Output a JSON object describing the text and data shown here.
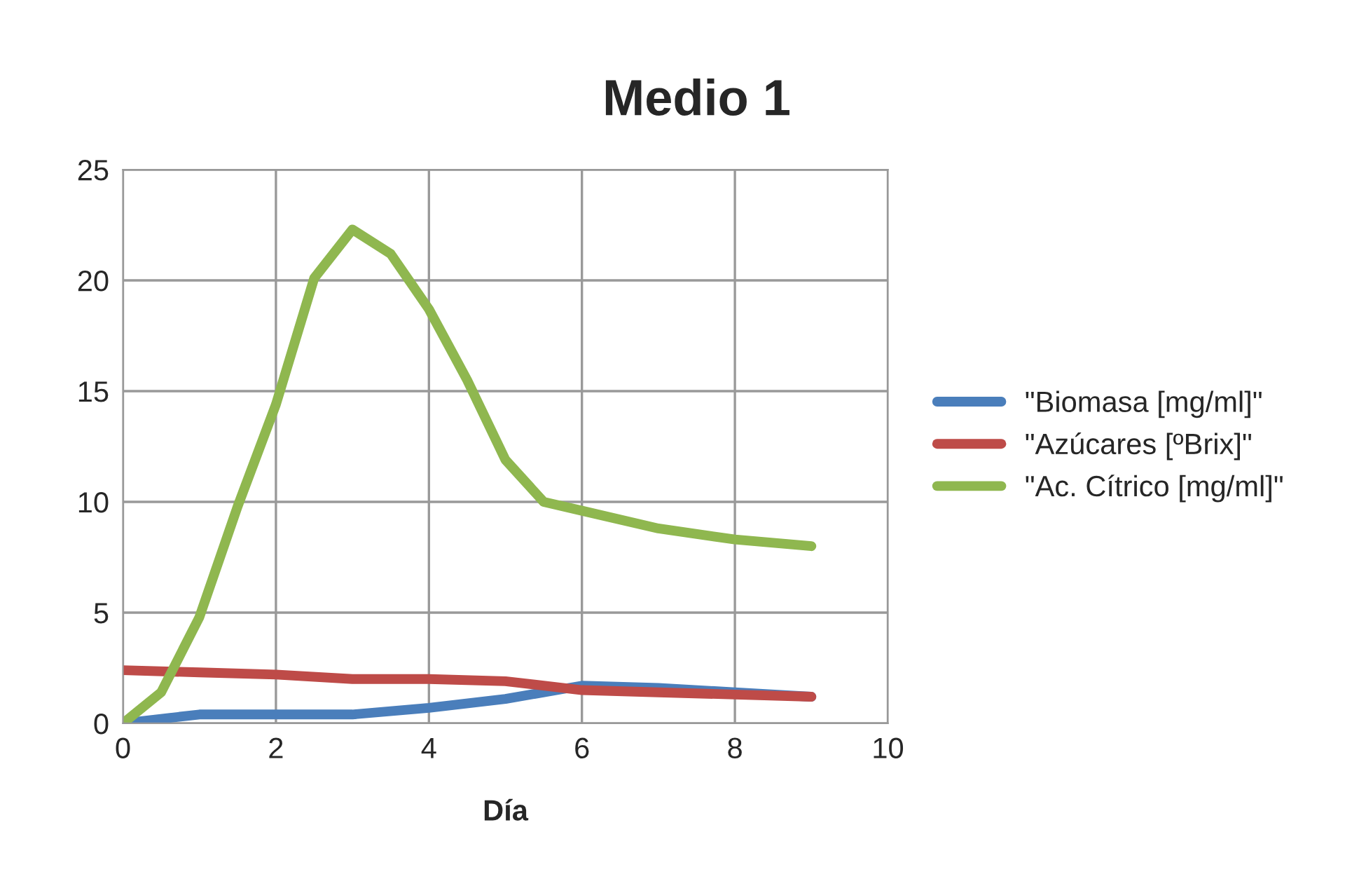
{
  "chart_data": {
    "type": "line",
    "title": "Medio 1",
    "xlabel": "Día",
    "xlim": [
      0,
      10
    ],
    "xticks": [
      0,
      2,
      4,
      6,
      8,
      10
    ],
    "ylim": [
      0,
      25
    ],
    "yticks": [
      0,
      5,
      10,
      15,
      20,
      25
    ],
    "grid": true,
    "legend": "right",
    "marker": "none",
    "line_style": "solid",
    "series": [
      {
        "name": "\"Biomasa [mg/ml]\"",
        "color": "#4a7ebb",
        "x": [
          0,
          1,
          2,
          3,
          4,
          5,
          6,
          7,
          8,
          9
        ],
        "values": [
          0,
          0.4,
          0.4,
          0.4,
          0.7,
          1.1,
          1.7,
          1.6,
          1.4,
          1.2
        ]
      },
      {
        "name": "\"Azúcares [ºBrix]\"",
        "color": "#be4b48",
        "x": [
          0,
          1,
          2,
          3,
          4,
          5,
          6,
          7,
          8,
          9
        ],
        "values": [
          2.4,
          2.3,
          2.2,
          2.0,
          2.0,
          1.9,
          1.5,
          1.4,
          1.3,
          1.2
        ]
      },
      {
        "name": "\"Ac. Cítrico [mg/ml]\"",
        "color": "#8fb74f",
        "x": [
          0,
          0.5,
          1,
          1.5,
          2,
          2.5,
          3,
          3.5,
          4,
          4.5,
          5,
          5.5,
          6,
          7,
          8,
          9
        ],
        "values": [
          0,
          1.4,
          4.8,
          9.8,
          14.4,
          20.1,
          22.3,
          21.2,
          18.7,
          15.5,
          11.9,
          10.0,
          9.6,
          8.8,
          8.3,
          8.0
        ]
      }
    ]
  }
}
